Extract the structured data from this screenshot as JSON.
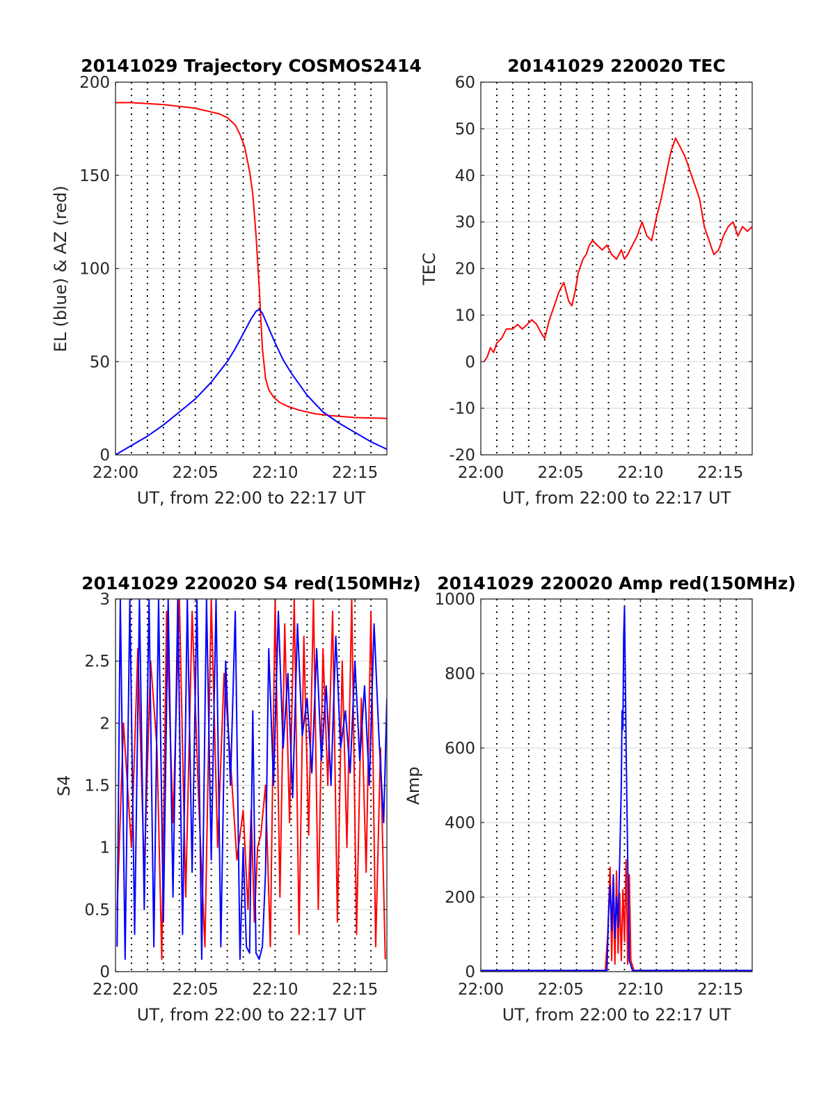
{
  "colors": {
    "red": "#ff0000",
    "blue": "#0000ff",
    "grid": "#dcdcdc"
  },
  "chart_data": [
    {
      "type": "line",
      "title": "20141029 Trajectory COSMOS2414",
      "xlabel": "UT, from 22:00 to 22:17 UT",
      "ylabel": "EL (blue) & AZ (red)",
      "xlim": [
        0,
        17
      ],
      "ylim": [
        0,
        200
      ],
      "xticks": [
        0,
        5,
        10,
        15
      ],
      "xtick_labels": [
        "22:00",
        "22:05",
        "22:10",
        "22:15"
      ],
      "yticks": [
        0,
        50,
        100,
        150,
        200
      ],
      "ytick_labels": [
        "0",
        "50",
        "100",
        "150",
        "200"
      ],
      "minor_vgrid": true,
      "series": [
        {
          "color": "#ff0000",
          "x": [
            0,
            1,
            2,
            3,
            4,
            5,
            6,
            6.5,
            7,
            7.5,
            7.8,
            8.1,
            8.4,
            8.6,
            8.8,
            9.0,
            9.2,
            9.4,
            9.6,
            9.9,
            10.3,
            10.8,
            11.5,
            12.5,
            13.5,
            15,
            17
          ],
          "y": [
            189,
            189,
            188.5,
            188,
            187,
            186,
            184,
            183,
            181,
            177,
            172,
            165,
            152,
            140,
            118,
            90,
            57,
            41,
            35,
            31,
            28,
            26,
            24,
            22,
            21,
            20,
            19.5
          ]
        },
        {
          "color": "#0000ff",
          "x": [
            0,
            1,
            2,
            3,
            4,
            5,
            6,
            7,
            7.5,
            8,
            8.5,
            8.8,
            9.0,
            9.2,
            9.5,
            10,
            10.5,
            11,
            12,
            13,
            14,
            15,
            16,
            17
          ],
          "y": [
            0,
            5,
            10,
            16,
            23,
            30,
            39,
            50,
            57,
            65,
            73,
            77,
            78,
            76,
            70,
            60,
            51,
            44,
            32,
            23,
            17,
            12,
            7,
            3
          ]
        }
      ]
    },
    {
      "type": "line",
      "title": "20141029 220020 TEC",
      "xlabel": "UT, from 22:00 to 22:17 UT",
      "ylabel": "TEC",
      "xlim": [
        0,
        17
      ],
      "ylim": [
        -20,
        60
      ],
      "xticks": [
        0,
        5,
        10,
        15
      ],
      "xtick_labels": [
        "22:00",
        "22:05",
        "22:10",
        "22:15"
      ],
      "yticks": [
        -20,
        -10,
        0,
        10,
        20,
        30,
        40,
        50,
        60
      ],
      "ytick_labels": [
        "-20",
        "-10",
        "0",
        "10",
        "20",
        "30",
        "40",
        "50",
        "60"
      ],
      "minor_vgrid": true,
      "series": [
        {
          "color": "#ff0000",
          "x": [
            0.2,
            0.4,
            0.6,
            0.8,
            1.0,
            1.3,
            1.6,
            2.0,
            2.3,
            2.6,
            2.9,
            3.2,
            3.5,
            3.8,
            4.0,
            4.3,
            4.6,
            4.9,
            5.2,
            5.5,
            5.7,
            5.9,
            6.1,
            6.4,
            6.6,
            6.8,
            7.0,
            7.3,
            7.6,
            7.9,
            8.2,
            8.5,
            8.8,
            9.0,
            9.2,
            9.5,
            9.8,
            10.1,
            10.4,
            10.7,
            11.0,
            11.3,
            11.6,
            11.9,
            12.2,
            12.5,
            12.8,
            13.1,
            13.4,
            13.7,
            14.0,
            14.3,
            14.6,
            14.9,
            15.2,
            15.5,
            15.8,
            16.1,
            16.4,
            16.7,
            17.0
          ],
          "y": [
            0,
            1,
            3,
            2,
            4,
            5,
            7,
            7,
            8,
            7,
            8,
            9,
            8,
            6,
            5,
            9,
            12,
            15,
            17,
            13,
            12,
            15,
            19,
            22,
            23,
            25,
            26,
            25,
            24,
            25,
            23,
            22,
            24,
            22,
            23,
            25,
            27,
            30,
            27,
            26,
            31,
            35,
            40,
            45,
            48,
            46,
            44,
            41,
            38,
            35,
            29,
            26,
            23,
            24,
            27,
            29,
            30,
            27,
            29,
            28,
            29
          ]
        }
      ]
    },
    {
      "type": "line",
      "title": "20141029 220020 S4 red(150MHz)",
      "xlabel": "UT, from 22:00 to 22:17 UT",
      "ylabel": "S4",
      "xlim": [
        0,
        17
      ],
      "ylim": [
        0,
        3
      ],
      "xticks": [
        0,
        5,
        10,
        15
      ],
      "xtick_labels": [
        "22:00",
        "22:05",
        "22:10",
        "22:15"
      ],
      "yticks": [
        0,
        0.5,
        1,
        1.5,
        2,
        2.5,
        3
      ],
      "ytick_labels": [
        "0",
        "0.5",
        "1",
        "1.5",
        "2",
        "2.5",
        "3"
      ],
      "minor_vgrid": true,
      "series": [
        {
          "color": "#ff0000",
          "x": [
            0.1,
            0.5,
            1.0,
            1.4,
            1.8,
            2.2,
            2.6,
            2.9,
            3.2,
            3.6,
            4.0,
            4.4,
            4.8,
            5.2,
            5.6,
            6.0,
            6.4,
            6.8,
            7.2,
            7.6,
            8.0,
            8.3,
            8.5,
            8.7,
            8.9,
            9.1,
            9.4,
            9.7,
            10.0,
            10.3,
            10.6,
            10.9,
            11.2,
            11.5,
            11.8,
            12.1,
            12.4,
            12.7,
            13.0,
            13.3,
            13.6,
            13.9,
            14.2,
            14.5,
            14.8,
            15.1,
            15.4,
            15.7,
            16.0,
            16.3,
            16.6,
            16.9
          ],
          "y": [
            0.5,
            2.0,
            1.0,
            2.6,
            0.8,
            2.5,
            1.8,
            0.1,
            2.9,
            1.2,
            3.0,
            0.6,
            2.9,
            1.4,
            0.2,
            3.0,
            1.0,
            2.4,
            1.7,
            0.9,
            1.3,
            0.5,
            1.3,
            0.4,
            1.0,
            1.1,
            1.5,
            0.2,
            3.0,
            0.6,
            2.8,
            1.2,
            3.0,
            0.3,
            2.7,
            1.1,
            3.0,
            0.5,
            2.6,
            1.5,
            2.9,
            0.4,
            2.5,
            1.0,
            3.0,
            0.3,
            2.2,
            0.8,
            2.9,
            0.2,
            1.8,
            0.1
          ]
        },
        {
          "color": "#0000ff",
          "x": [
            0.1,
            0.3,
            0.6,
            0.9,
            1.2,
            1.5,
            1.8,
            2.1,
            2.4,
            2.7,
            3.0,
            3.3,
            3.6,
            3.9,
            4.2,
            4.5,
            4.8,
            5.1,
            5.4,
            5.7,
            6.0,
            6.3,
            6.6,
            6.9,
            7.2,
            7.5,
            7.8,
            8.0,
            8.2,
            8.4,
            8.6,
            8.8,
            9.0,
            9.2,
            9.4,
            9.6,
            9.9,
            10.2,
            10.5,
            10.8,
            11.1,
            11.4,
            11.7,
            12.0,
            12.3,
            12.6,
            12.9,
            13.2,
            13.5,
            13.8,
            14.1,
            14.4,
            14.7,
            15.0,
            15.3,
            15.6,
            15.9,
            16.2,
            16.5,
            16.8,
            17.0
          ],
          "y": [
            0.2,
            3.0,
            0.1,
            3.0,
            0.3,
            3.0,
            0.5,
            3.0,
            0.2,
            3.0,
            0.4,
            3.0,
            0.6,
            3.0,
            0.3,
            3.0,
            0.8,
            3.0,
            0.1,
            3.0,
            0.9,
            3.0,
            0.2,
            2.5,
            1.5,
            2.9,
            0.1,
            1.0,
            0.2,
            0.15,
            2.1,
            0.15,
            0.1,
            0.2,
            0.8,
            2.6,
            1.5,
            2.9,
            1.8,
            2.4,
            1.4,
            2.8,
            1.9,
            2.2,
            1.6,
            2.6,
            1.7,
            2.3,
            1.5,
            2.7,
            1.8,
            2.1,
            1.6,
            2.5,
            1.7,
            2.3,
            1.5,
            2.8,
            1.9,
            1.2,
            2.2
          ]
        }
      ]
    },
    {
      "type": "line",
      "title": "20141029 220020 Amp red(150MHz)",
      "xlabel": "UT, from 22:00 to 22:17 UT",
      "ylabel": "Amp",
      "xlim": [
        0,
        17
      ],
      "ylim": [
        0,
        1000
      ],
      "xticks": [
        0,
        5,
        10,
        15
      ],
      "xtick_labels": [
        "22:00",
        "22:05",
        "22:10",
        "22:15"
      ],
      "yticks": [
        0,
        200,
        400,
        600,
        800,
        1000
      ],
      "ytick_labels": [
        "0",
        "200",
        "400",
        "600",
        "800",
        "1000"
      ],
      "minor_vgrid": true,
      "series": [
        {
          "color": "#ff0000",
          "x": [
            0,
            7.8,
            7.95,
            8.1,
            8.2,
            8.3,
            8.4,
            8.5,
            8.6,
            8.7,
            8.8,
            8.9,
            9.0,
            9.1,
            9.2,
            9.3,
            9.4,
            9.6,
            17
          ],
          "y": [
            3,
            3,
            100,
            280,
            30,
            240,
            20,
            270,
            50,
            210,
            30,
            220,
            80,
            300,
            20,
            260,
            30,
            3,
            3
          ]
        },
        {
          "color": "#0000ff",
          "x": [
            0,
            7.9,
            8.0,
            8.1,
            8.2,
            8.3,
            8.4,
            8.5,
            8.6,
            8.7,
            8.8,
            8.85,
            8.9,
            8.95,
            9.0,
            9.05,
            9.1,
            9.2,
            9.3,
            9.5,
            17
          ],
          "y": [
            3,
            3,
            150,
            230,
            110,
            260,
            90,
            200,
            120,
            300,
            500,
            700,
            650,
            900,
            980,
            800,
            600,
            300,
            30,
            3,
            3
          ]
        }
      ]
    }
  ]
}
